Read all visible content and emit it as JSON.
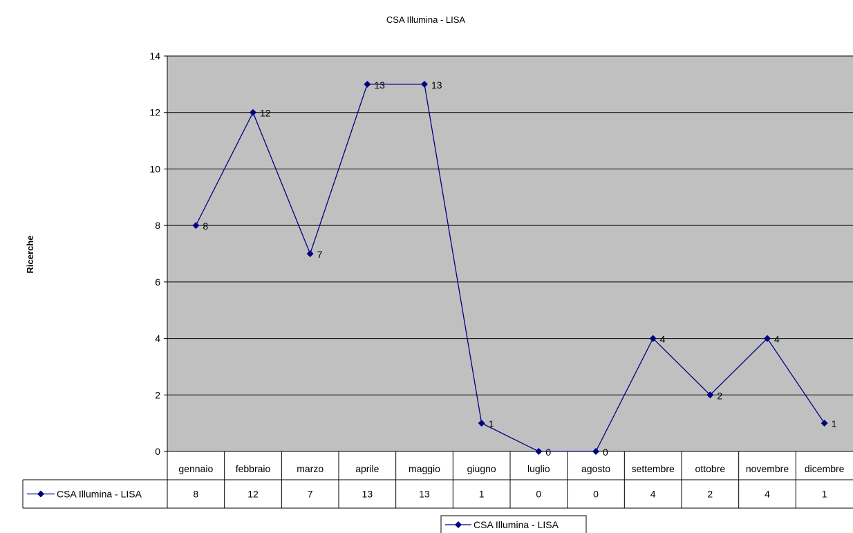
{
  "chart_data": {
    "type": "line",
    "title": "CSA Illumina - LISA",
    "xlabel": "",
    "ylabel": "Ricerche",
    "categories": [
      "gennaio",
      "febbraio",
      "marzo",
      "aprile",
      "maggio",
      "giugno",
      "luglio",
      "agosto",
      "settembre",
      "ottobre",
      "novembre",
      "dicembre"
    ],
    "series": [
      {
        "name": "CSA Illumina - LISA",
        "values": [
          8,
          12,
          7,
          13,
          13,
          1,
          0,
          0,
          4,
          2,
          4,
          1
        ]
      }
    ],
    "ylim": [
      0,
      14
    ],
    "yticks": [
      0,
      2,
      4,
      6,
      8,
      10,
      12,
      14
    ],
    "grid": true,
    "data_labels": true,
    "data_table": true,
    "legend_position": "bottom",
    "colors": {
      "plot_background": "#c0c0c0",
      "series_line": "#000080",
      "gridline": "#000000",
      "axis": "#000000"
    },
    "marker": "diamond"
  }
}
